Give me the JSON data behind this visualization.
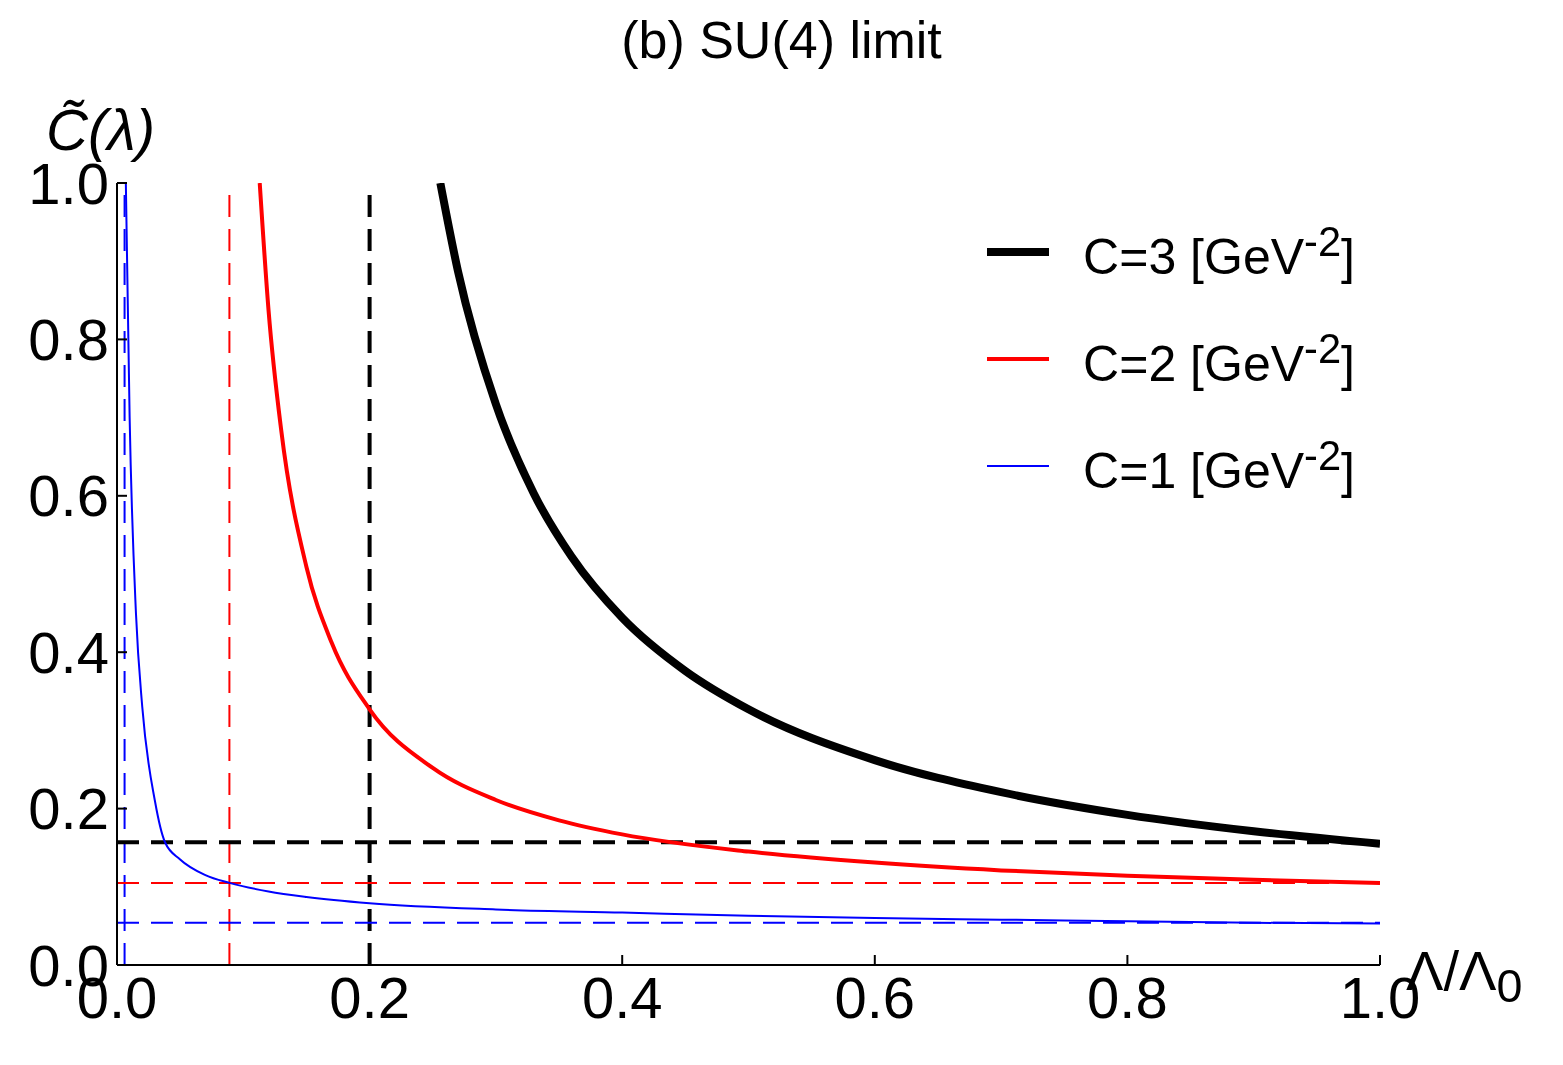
{
  "chart_data": {
    "type": "line",
    "title": "(b) SU(4) limit",
    "xlabel": "Λ/Λ$_{0}$",
    "ylabel": "C̃(λ)",
    "xlim": [
      0,
      1
    ],
    "ylim": [
      0,
      1
    ],
    "xticks": [
      {
        "value": 0,
        "label": "0.0"
      },
      {
        "value": 0.2,
        "label": "0.2"
      },
      {
        "value": 0.4,
        "label": "0.4"
      },
      {
        "value": 0.6,
        "label": "0.6"
      },
      {
        "value": 0.8,
        "label": "0.8"
      },
      {
        "value": 1,
        "label": "1.0"
      }
    ],
    "yticks": [
      {
        "value": 0,
        "label": "0.0"
      },
      {
        "value": 0.2,
        "label": "0.2"
      },
      {
        "value": 0.4,
        "label": "0.4"
      },
      {
        "value": 0.6,
        "label": "0.6"
      },
      {
        "value": 0.8,
        "label": "0.8"
      },
      {
        "value": 1,
        "label": "1.0"
      }
    ],
    "legend": "top right",
    "marker": "none",
    "line_style": "solid",
    "series": [
      {
        "name": "C=3 [GeV$^{-2}$]",
        "color": "#000000",
        "x": [
          0.256,
          0.27,
          0.3,
          0.33,
          0.36,
          0.4,
          0.45,
          0.5,
          0.6,
          0.7,
          0.8,
          0.9,
          1.0
        ],
        "values": [
          1.0,
          0.887,
          0.717,
          0.603,
          0.522,
          0.444,
          0.376,
          0.327,
          0.262,
          0.221,
          0.192,
          0.171,
          0.155
        ]
      },
      {
        "name": "C=2 [GeV$^{-2}$]",
        "color": "#ff0000",
        "x": [
          0.113,
          0.12,
          0.13,
          0.15,
          0.17,
          0.2,
          0.25,
          0.3,
          0.35,
          0.4,
          0.5,
          0.6,
          0.7,
          0.8,
          0.9,
          1.0
        ],
        "values": [
          1.0,
          0.837,
          0.684,
          0.509,
          0.412,
          0.327,
          0.252,
          0.211,
          0.185,
          0.167,
          0.145,
          0.131,
          0.121,
          0.114,
          0.109,
          0.105
        ]
      },
      {
        "name": "C=1 [GeV$^{-2}$]",
        "color": "#0000ff",
        "x": [
          0.007,
          0.01,
          0.015,
          0.02,
          0.03,
          0.038,
          0.05,
          0.07,
          0.089,
          0.12,
          0.15,
          0.2,
          0.3,
          0.4,
          0.5,
          0.6,
          0.7,
          0.8,
          0.9,
          1.0
        ],
        "values": [
          1.0,
          0.7,
          0.45,
          0.33,
          0.21,
          0.157,
          0.135,
          0.115,
          0.105,
          0.094,
          0.087,
          0.079,
          0.071,
          0.067,
          0.063,
          0.06,
          0.058,
          0.056,
          0.054,
          0.053
        ]
      }
    ],
    "ref_lines": [
      {
        "axis": "x",
        "value": 0.2,
        "color": "#000000",
        "line_style": "dashed"
      },
      {
        "axis": "x",
        "value": 0.089,
        "color": "#ff0000",
        "line_style": "dashed"
      },
      {
        "axis": "x",
        "value": 0.006,
        "color": "#0000ff",
        "line_style": "dashed"
      },
      {
        "axis": "y",
        "value": 0.157,
        "color": "#000000",
        "line_style": "dashed"
      },
      {
        "axis": "y",
        "value": 0.105,
        "color": "#ff0000",
        "line_style": "dashed"
      },
      {
        "axis": "y",
        "value": 0.054,
        "color": "#0000ff",
        "line_style": "dashed"
      }
    ]
  }
}
